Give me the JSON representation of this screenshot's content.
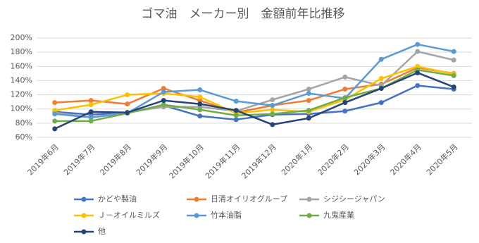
{
  "chart_data": {
    "type": "line",
    "title": "ゴマ油　メーカー別　金額前年比推移",
    "categories": [
      "2019年6月",
      "2019年7月",
      "2019年8月",
      "2019年9月",
      "2019年10月",
      "2019年11月",
      "2019年12月",
      "2020年1月",
      "2020年2月",
      "2020年3月",
      "2020年4月",
      "2020年5月"
    ],
    "series": [
      {
        "name": "かどや製油",
        "color": "#4472c4",
        "values": [
          96,
          92,
          95,
          105,
          90,
          85,
          92,
          93,
          97,
          109,
          133,
          128
        ]
      },
      {
        "name": "日清オイリオグループ",
        "color": "#ed7d31",
        "values": [
          109,
          112,
          107,
          129,
          112,
          95,
          105,
          112,
          128,
          135,
          158,
          150
        ]
      },
      {
        "name": "シジシージャパン",
        "color": "#a5a5a5",
        "values": [
          95,
          88,
          95,
          103,
          103,
          97,
          113,
          128,
          145,
          133,
          181,
          169
        ]
      },
      {
        "name": "Ｊ－オイルミルズ",
        "color": "#ffc000",
        "values": [
          98,
          106,
          120,
          122,
          117,
          94,
          99,
          96,
          113,
          143,
          160,
          149
        ]
      },
      {
        "name": "竹本油脂",
        "color": "#5b9bd5",
        "values": [
          93,
          88,
          94,
          124,
          127,
          111,
          105,
          122,
          115,
          170,
          191,
          181
        ]
      },
      {
        "name": "九鬼産業",
        "color": "#70ad47",
        "values": [
          83,
          83,
          94,
          106,
          99,
          91,
          93,
          98,
          116,
          129,
          155,
          147
        ]
      },
      {
        "name": "他",
        "color": "#264478",
        "values": [
          72,
          96,
          95,
          112,
          107,
          98,
          78,
          87,
          109,
          129,
          151,
          131
        ]
      }
    ],
    "ylim": [
      60,
      200
    ],
    "yticks": [
      {
        "value": 60,
        "label": "60%"
      },
      {
        "value": 80,
        "label": "80%"
      },
      {
        "value": 100,
        "label": "100%"
      },
      {
        "value": 120,
        "label": "120%"
      },
      {
        "value": 140,
        "label": "140%"
      },
      {
        "value": 160,
        "label": "160%"
      },
      {
        "value": 180,
        "label": "180%"
      },
      {
        "value": 200,
        "label": "200%"
      }
    ],
    "grid": true
  }
}
